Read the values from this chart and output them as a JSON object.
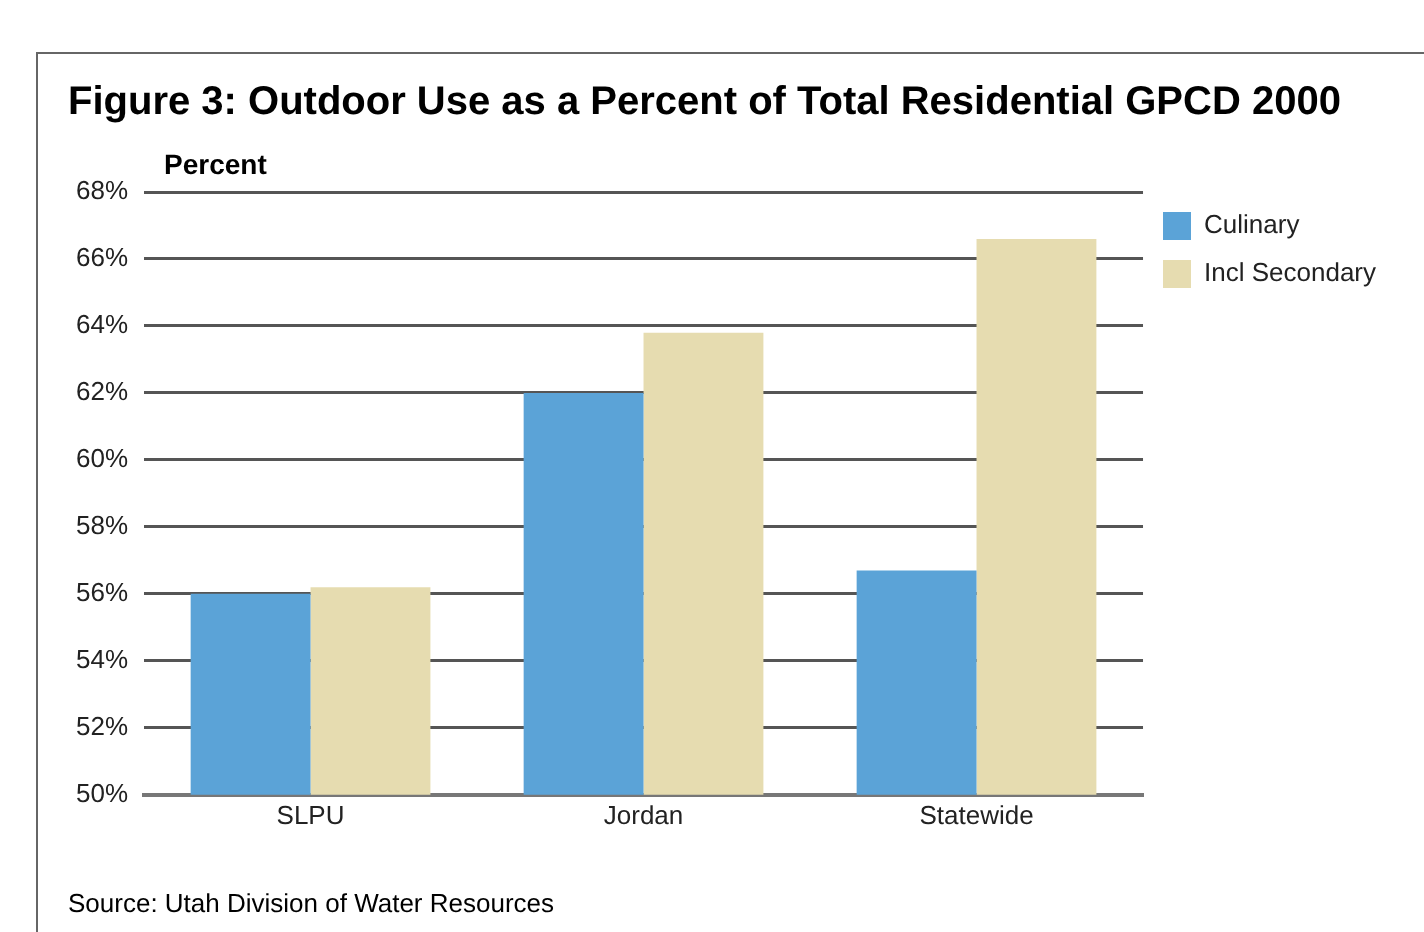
{
  "chart_data": {
    "type": "bar",
    "title": "Figure 3: Outdoor Use as a Percent of Total Residential GPCD 2000",
    "ylabel": "Percent",
    "categories": [
      "SLPU",
      "Jordan",
      "Statewide"
    ],
    "series": [
      {
        "name": "Culinary",
        "color": "#5ba3d7",
        "values": [
          56.0,
          62.0,
          56.7
        ]
      },
      {
        "name": "Incl Secondary",
        "color": "#e6dcb0",
        "values": [
          56.2,
          63.8,
          66.6
        ]
      }
    ],
    "ylim": [
      50,
      68
    ],
    "yticks": [
      {
        "value": 50,
        "label": "50%"
      },
      {
        "value": 52,
        "label": "52%"
      },
      {
        "value": 54,
        "label": "54%"
      },
      {
        "value": 56,
        "label": "56%"
      },
      {
        "value": 58,
        "label": "58%"
      },
      {
        "value": 60,
        "label": "60%"
      },
      {
        "value": 62,
        "label": "62%"
      },
      {
        "value": 64,
        "label": "64%"
      },
      {
        "value": 66,
        "label": "66%"
      },
      {
        "value": 68,
        "label": "68%"
      }
    ],
    "grid": "y",
    "legend": "top right",
    "annotations": [
      "Source: Utah Division of Water Resources"
    ]
  }
}
